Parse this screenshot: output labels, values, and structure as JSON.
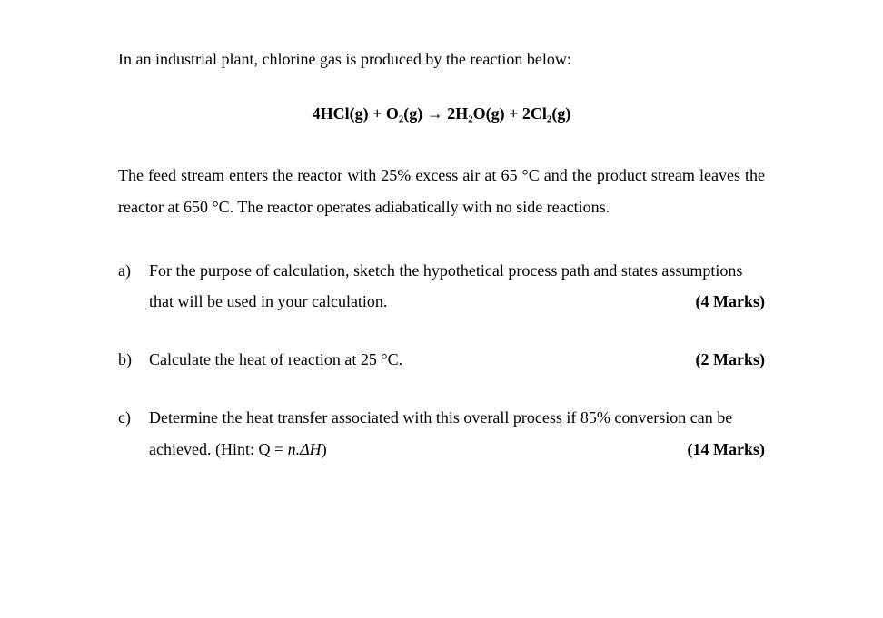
{
  "typography": {
    "font_family": "Times New Roman",
    "base_font_size_pt": 13,
    "line_height": 1.9,
    "text_color": "#000000",
    "background_color": "#ffffff"
  },
  "intro": "In an industrial plant, chlorine gas is produced by the reaction below:",
  "equation": "4HCl(g) + O₂(g) → 2H₂O(g) + 2Cl₂(g)",
  "description": "The feed stream enters the reactor with 25% excess air at 65 °C and the product stream leaves the reactor at 650 °C. The reactor operates adiabatically with no side reactions.",
  "questions": [
    {
      "label": "a)",
      "text_line1": "For the purpose of calculation, sketch the hypothetical process path and states assumptions",
      "text_line2_prefix": "that will be used in your calculation.",
      "marks": "(4 Marks)"
    },
    {
      "label": "b)",
      "text_line1_prefix": "Calculate the heat of reaction at 25 °C.",
      "marks": "(2 Marks)"
    },
    {
      "label": "c)",
      "text_line1": "Determine the heat transfer associated with this overall process if 85% conversion can be",
      "text_line2_prefix": "achieved. (Hint: Q = n.ΔH)",
      "marks": "(14 Marks)"
    }
  ]
}
